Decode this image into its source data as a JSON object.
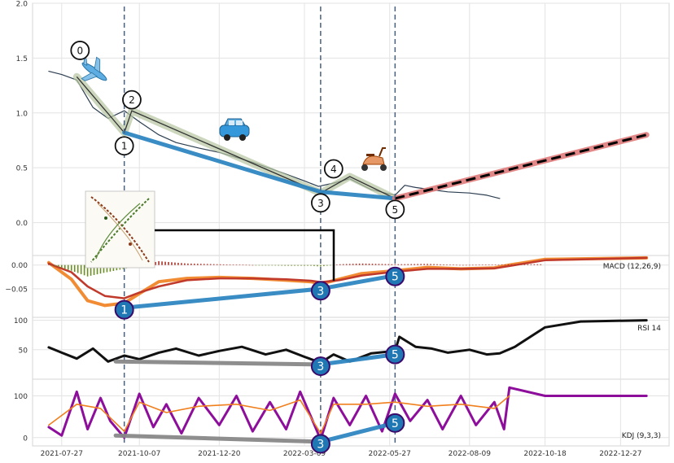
{
  "chart_data": [
    {
      "type": "line",
      "panel": "price",
      "ylim": [
        -0.3,
        2.0
      ],
      "yticks": [
        "2.0",
        "1.5",
        "1.0",
        "0.5",
        "0.0"
      ],
      "grid": true,
      "series": [
        {
          "role": "price",
          "color": "#2c3e50",
          "x": [
            "2021-07-15",
            "2021-07-27",
            "2021-08-10",
            "2021-08-25",
            "2021-09-08",
            "2021-09-23",
            "2021-10-07",
            "2021-10-25",
            "2021-11-10",
            "2021-12-01",
            "2021-12-20",
            "2022-01-20",
            "2022-02-15",
            "2022-03-09",
            "2022-03-22",
            "2022-04-05",
            "2022-04-20",
            "2022-05-10",
            "2022-06-01",
            "2022-06-10",
            "2022-06-20",
            "2022-07-05",
            "2022-07-20",
            "2022-08-09",
            "2022-08-25",
            "2022-09-06"
          ],
          "y": [
            1.38,
            1.35,
            1.3,
            1.05,
            0.95,
            1.02,
            0.92,
            0.8,
            0.73,
            0.68,
            0.64,
            0.55,
            0.46,
            0.38,
            0.33,
            0.36,
            0.4,
            0.3,
            0.25,
            0.34,
            0.32,
            0.3,
            0.28,
            0.27,
            0.25,
            0.22
          ]
        },
        {
          "role": "wave",
          "color": "#b5c5a0",
          "x": [
            "2021-08-10",
            "2021-09-23",
            "2021-09-30",
            "2022-03-24",
            "2022-04-20",
            "2022-06-01"
          ],
          "y": [
            1.33,
            0.82,
            1.02,
            0.27,
            0.42,
            0.22
          ]
        },
        {
          "role": "trend",
          "color": "#2e86c1",
          "x": [
            "2021-09-23",
            "2022-03-24",
            "2022-06-01"
          ],
          "y": [
            0.82,
            0.28,
            0.22
          ]
        },
        {
          "role": "projection",
          "color": "#e07b7b",
          "x": [
            "2022-06-01",
            "2023-01-20"
          ],
          "y": [
            0.22,
            0.8
          ]
        }
      ],
      "wave_labels": [
        {
          "text": "0",
          "x": "2021-08-13",
          "y": 1.57
        },
        {
          "text": "1",
          "x": "2021-09-23",
          "y": 0.7
        },
        {
          "text": "2",
          "x": "2021-09-30",
          "y": 1.12
        },
        {
          "text": "3",
          "x": "2022-03-24",
          "y": 0.18
        },
        {
          "text": "4",
          "x": "2022-04-05",
          "y": 0.49
        },
        {
          "text": "5",
          "x": "2022-06-01",
          "y": 0.12
        }
      ],
      "vlines": [
        "2021-09-23",
        "2022-03-24",
        "2022-06-01"
      ]
    },
    {
      "type": "line",
      "panel": "macd",
      "label": "MACD (12,26,9)",
      "ylim": [
        -0.11,
        0.02
      ],
      "yticks": [
        "0.00",
        "−0.05"
      ],
      "series": [
        {
          "role": "macd",
          "color": "#f07f1e",
          "x": [
            "2021-07-15",
            "2021-08-05",
            "2021-08-20",
            "2021-09-05",
            "2021-09-23",
            "2021-10-07",
            "2021-10-25",
            "2021-11-20",
            "2021-12-20",
            "2022-01-20",
            "2022-02-20",
            "2022-03-15",
            "2022-03-24",
            "2022-04-10",
            "2022-05-01",
            "2022-06-01",
            "2022-07-01",
            "2022-08-01",
            "2022-09-01",
            "2022-09-15",
            "2022-10-18",
            "2023-01-20"
          ],
          "y": [
            0.005,
            -0.03,
            -0.075,
            -0.085,
            -0.08,
            -0.06,
            -0.035,
            -0.028,
            -0.026,
            -0.028,
            -0.032,
            -0.035,
            -0.04,
            -0.03,
            -0.018,
            -0.012,
            -0.005,
            -0.008,
            -0.006,
            0.0,
            0.012,
            0.015
          ]
        },
        {
          "role": "signal",
          "color": "#c0392b",
          "x": [
            "2021-07-15",
            "2021-08-05",
            "2021-08-20",
            "2021-09-05",
            "2021-09-23",
            "2021-10-07",
            "2021-10-25",
            "2021-11-20",
            "2021-12-20",
            "2022-01-20",
            "2022-02-20",
            "2022-03-15",
            "2022-03-24",
            "2022-04-10",
            "2022-05-01",
            "2022-06-01",
            "2022-07-01",
            "2022-08-01",
            "2022-09-01",
            "2022-09-15",
            "2022-10-18",
            "2023-01-20"
          ],
          "y": [
            0.003,
            -0.015,
            -0.045,
            -0.065,
            -0.07,
            -0.058,
            -0.045,
            -0.032,
            -0.028,
            -0.028,
            -0.03,
            -0.033,
            -0.036,
            -0.032,
            -0.022,
            -0.014,
            -0.008,
            -0.008,
            -0.007,
            -0.002,
            0.01,
            0.015
          ]
        },
        {
          "role": "trend",
          "color": "#2e86c1",
          "x": [
            "2021-09-23",
            "2022-03-24",
            "2022-06-01"
          ],
          "y": [
            -0.09,
            -0.05,
            -0.022
          ]
        }
      ],
      "labels": [
        {
          "text": "1",
          "x": "2021-09-23",
          "y": -0.094
        },
        {
          "text": "3",
          "x": "2022-03-24",
          "y": -0.054
        },
        {
          "text": "5",
          "x": "2022-06-01",
          "y": -0.024
        }
      ]
    },
    {
      "type": "line",
      "panel": "rsi",
      "label": "RSI 14",
      "ylim": [
        0,
        105
      ],
      "yticks": [
        "100",
        "50"
      ],
      "series": [
        {
          "role": "rsi",
          "color": "#111111",
          "x": [
            "2021-07-15",
            "2021-07-27",
            "2021-08-10",
            "2021-08-25",
            "2021-09-08",
            "2021-09-23",
            "2021-10-07",
            "2021-10-25",
            "2021-11-10",
            "2021-12-01",
            "2021-12-20",
            "2022-01-10",
            "2022-02-01",
            "2022-02-20",
            "2022-03-09",
            "2022-03-24",
            "2022-04-05",
            "2022-04-20",
            "2022-05-10",
            "2022-06-01",
            "2022-06-05",
            "2022-06-20",
            "2022-07-05",
            "2022-07-20",
            "2022-08-09",
            "2022-08-25",
            "2022-09-06",
            "2022-09-20",
            "2022-10-18",
            "2022-11-20",
            "2023-01-20"
          ],
          "y": [
            54,
            45,
            35,
            52,
            30,
            40,
            34,
            45,
            52,
            40,
            48,
            55,
            42,
            50,
            38,
            28,
            42,
            30,
            44,
            48,
            72,
            55,
            52,
            45,
            50,
            42,
            44,
            55,
            88,
            98,
            100
          ]
        },
        {
          "role": "trend",
          "color": "#888888",
          "x": [
            "2021-09-15",
            "2022-03-24"
          ],
          "y": [
            30,
            25
          ]
        },
        {
          "role": "trend",
          "color": "#2e86c1",
          "x": [
            "2022-03-24",
            "2022-06-01"
          ],
          "y": [
            25,
            42
          ]
        }
      ],
      "labels": [
        {
          "text": "3",
          "x": "2022-03-24",
          "y": 22
        },
        {
          "text": "5",
          "x": "2022-06-01",
          "y": 42
        }
      ]
    },
    {
      "type": "line",
      "panel": "kdj",
      "label": "KDJ (9,3,3)",
      "ylim": [
        -20,
        140
      ],
      "yticks": [
        "100",
        "0"
      ],
      "xticks": [
        "2021-07-27",
        "2021-10-07",
        "2021-12-20",
        "2022-03-09",
        "2022-05-27",
        "2022-08-09",
        "2022-10-18",
        "2022-12-27"
      ],
      "series": [
        {
          "role": "J",
          "color": "#8e0e9c",
          "x": [
            "2021-07-15",
            "2021-07-27",
            "2021-08-10",
            "2021-08-20",
            "2021-09-01",
            "2021-09-10",
            "2021-09-23",
            "2021-10-07",
            "2021-10-20",
            "2021-11-01",
            "2021-11-15",
            "2021-12-01",
            "2021-12-20",
            "2022-01-05",
            "2022-01-20",
            "2022-02-05",
            "2022-02-20",
            "2022-03-05",
            "2022-03-15",
            "2022-03-24",
            "2022-04-05",
            "2022-04-20",
            "2022-05-05",
            "2022-05-20",
            "2022-06-01",
            "2022-06-15",
            "2022-07-01",
            "2022-07-15",
            "2022-08-01",
            "2022-08-15",
            "2022-09-01",
            "2022-09-10",
            "2022-09-15",
            "2022-10-18",
            "2023-01-20"
          ],
          "y": [
            25,
            5,
            110,
            20,
            95,
            40,
            0,
            105,
            25,
            80,
            10,
            95,
            30,
            100,
            15,
            85,
            20,
            110,
            50,
            -5,
            95,
            30,
            100,
            15,
            105,
            40,
            90,
            20,
            100,
            30,
            85,
            20,
            120,
            100,
            100
          ]
        },
        {
          "role": "K",
          "color": "#f07f1e",
          "x": [
            "2021-07-15",
            "2021-08-10",
            "2021-09-01",
            "2021-09-23",
            "2021-10-07",
            "2021-11-01",
            "2021-12-01",
            "2022-01-05",
            "2022-02-05",
            "2022-03-05",
            "2022-03-24",
            "2022-04-05",
            "2022-05-05",
            "2022-06-01",
            "2022-07-01",
            "2022-08-01",
            "2022-09-01",
            "2022-09-15"
          ],
          "y": [
            30,
            80,
            70,
            15,
            85,
            60,
            75,
            80,
            65,
            90,
            10,
            80,
            80,
            85,
            75,
            80,
            70,
            100
          ]
        },
        {
          "role": "trend",
          "color": "#888888",
          "x": [
            "2021-09-15",
            "2022-03-24"
          ],
          "y": [
            5,
            -10
          ]
        },
        {
          "role": "trend",
          "color": "#2e86c1",
          "x": [
            "2022-03-24",
            "2022-06-01"
          ],
          "y": [
            -10,
            35
          ]
        }
      ],
      "labels": [
        {
          "text": "3",
          "x": "2022-03-24",
          "y": -15
        },
        {
          "text": "5",
          "x": "2022-06-01",
          "y": 35
        }
      ]
    }
  ]
}
